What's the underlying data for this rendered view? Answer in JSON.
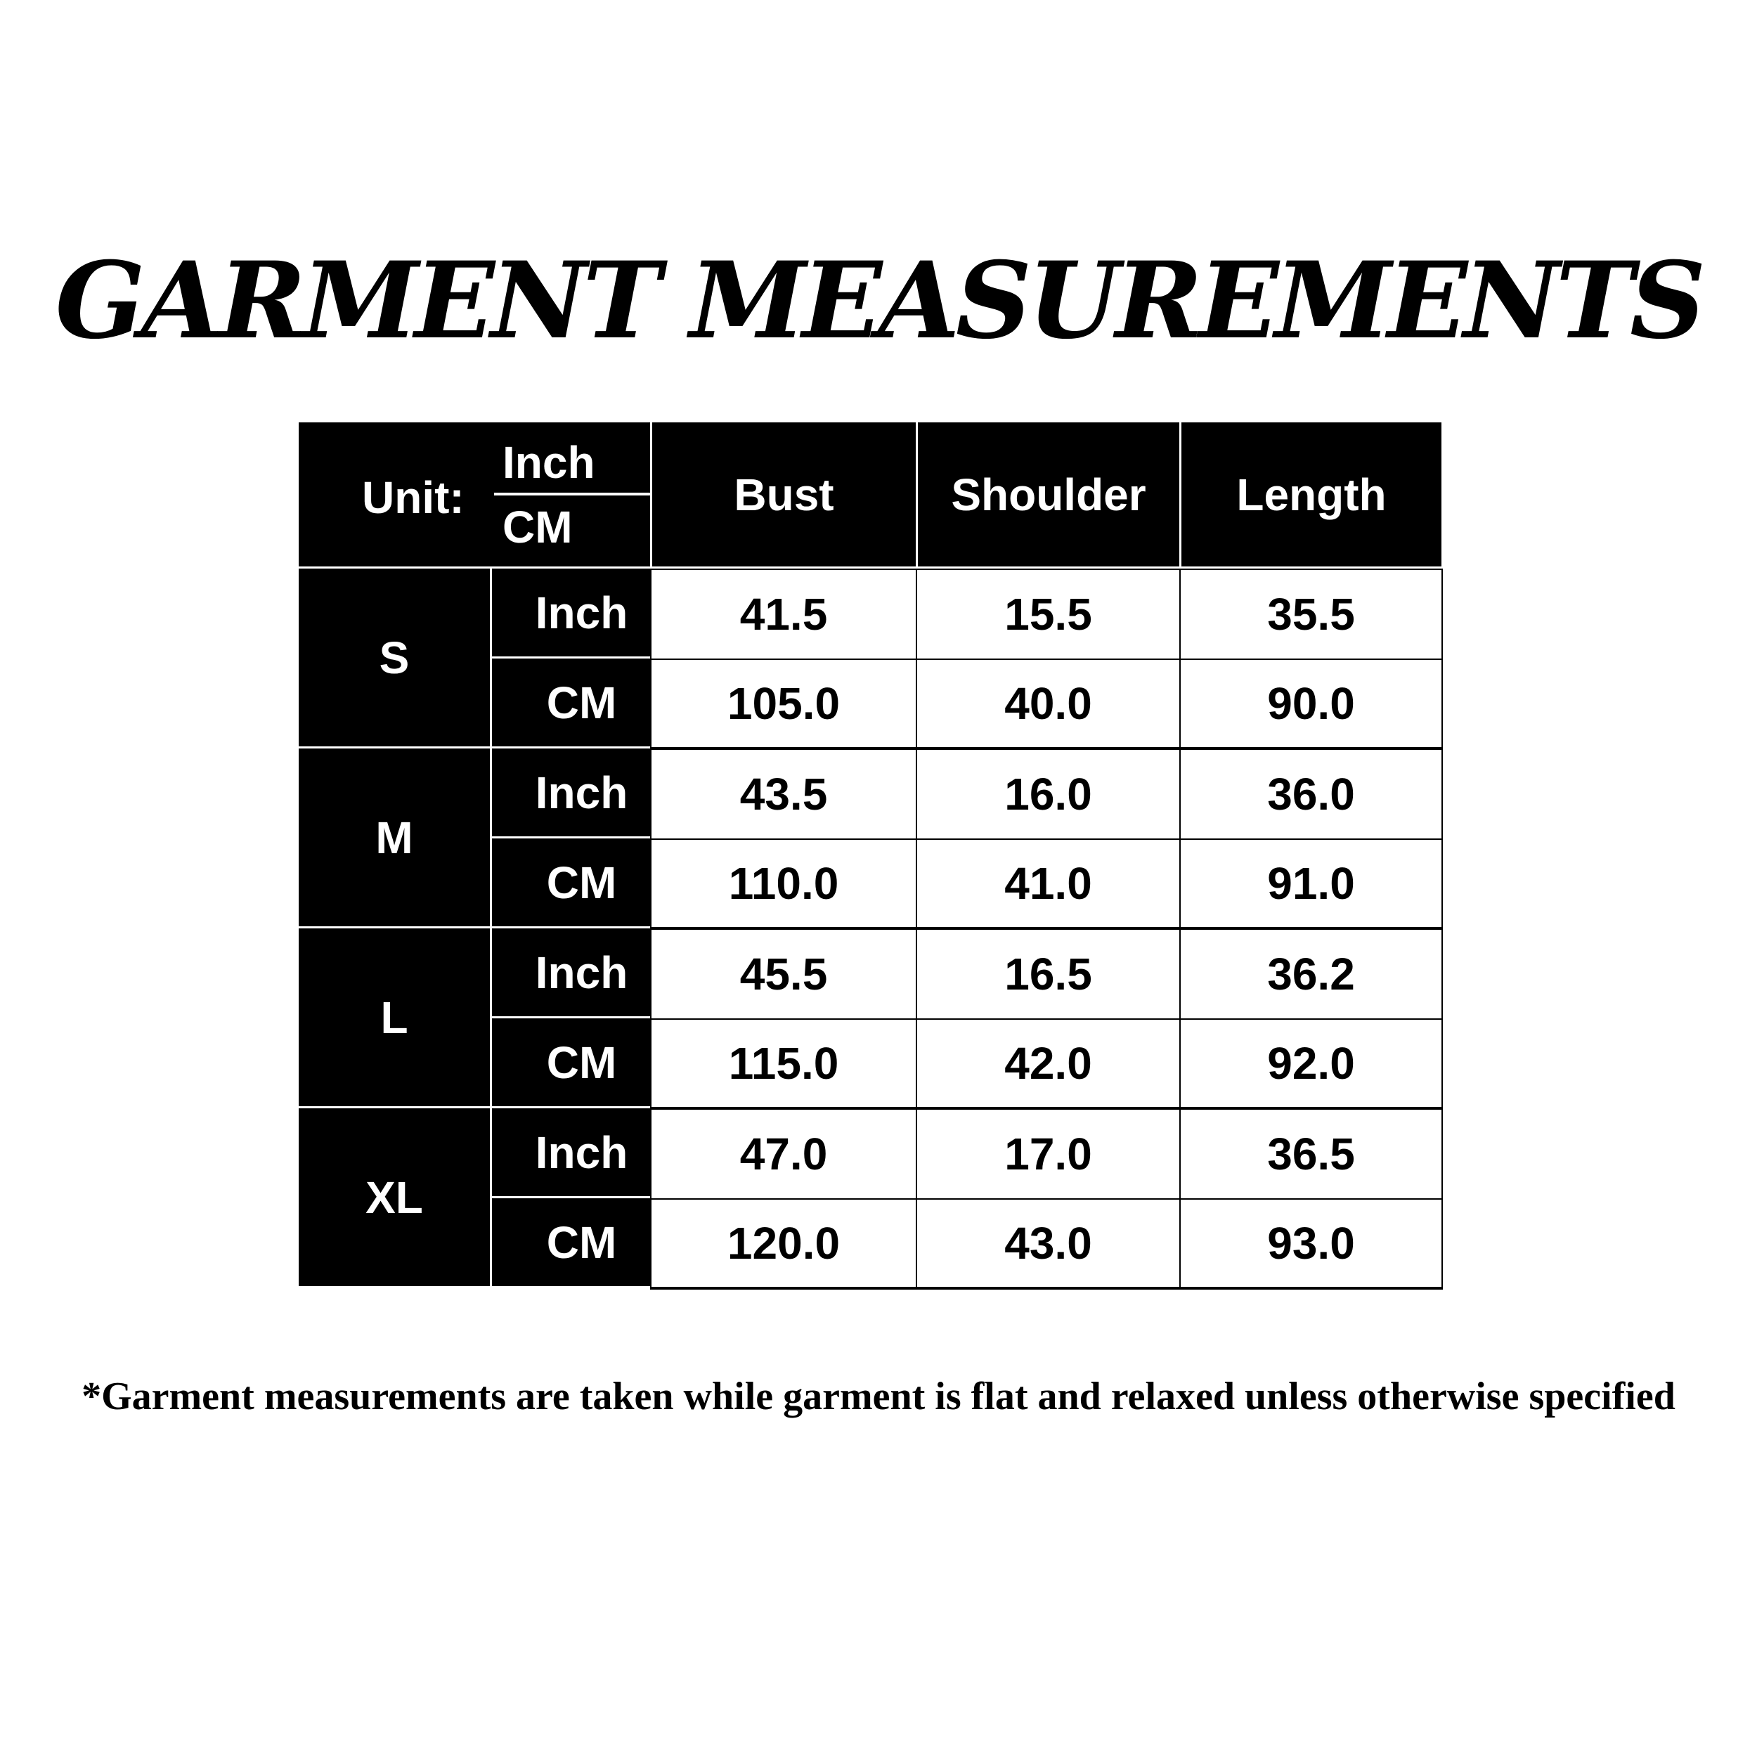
{
  "title": "GARMENT MEASUREMENTS",
  "table": {
    "unit_label": "Unit:",
    "unit_inch": "Inch",
    "unit_cm": "CM",
    "columns": [
      "Bust",
      "Shoulder",
      "Length"
    ],
    "sizes": [
      {
        "size": "S",
        "rows": [
          {
            "unit": "Inch",
            "values": [
              "41.5",
              "15.5",
              "35.5"
            ]
          },
          {
            "unit": "CM",
            "values": [
              "105.0",
              "40.0",
              "90.0"
            ]
          }
        ]
      },
      {
        "size": "M",
        "rows": [
          {
            "unit": "Inch",
            "values": [
              "43.5",
              "16.0",
              "36.0"
            ]
          },
          {
            "unit": "CM",
            "values": [
              "110.0",
              "41.0",
              "91.0"
            ]
          }
        ]
      },
      {
        "size": "L",
        "rows": [
          {
            "unit": "Inch",
            "values": [
              "45.5",
              "16.5",
              "36.2"
            ]
          },
          {
            "unit": "CM",
            "values": [
              "115.0",
              "42.0",
              "92.0"
            ]
          }
        ]
      },
      {
        "size": "XL",
        "rows": [
          {
            "unit": "Inch",
            "values": [
              "47.0",
              "17.0",
              "36.5"
            ]
          },
          {
            "unit": "CM",
            "values": [
              "120.0",
              "43.0",
              "93.0"
            ]
          }
        ]
      }
    ]
  },
  "footnote": "*Garment measurements are taken while garment is flat and relaxed unless otherwise specified"
}
